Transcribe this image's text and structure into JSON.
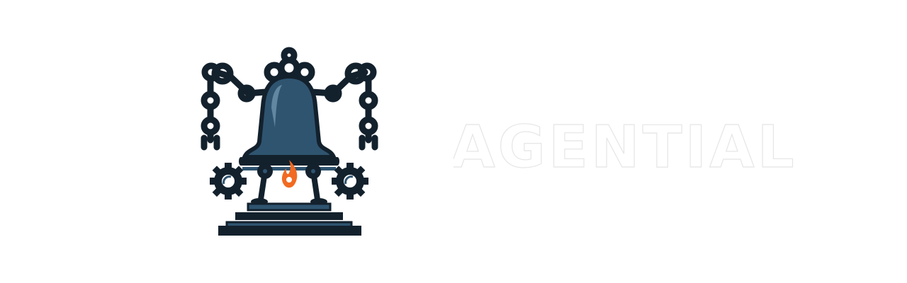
{
  "brand": {
    "name": "AGENTIAL",
    "wordmark_color": "#ffffff",
    "wordmark_outline": "#e6e6e6"
  },
  "logo": {
    "icon": "robot-bell-icon",
    "colors": {
      "bell": "#2f5470",
      "bell_highlight": "#6f93ad",
      "dark": "#13212d",
      "flame": "#f26a21",
      "flame_core": "#ffffff"
    }
  }
}
